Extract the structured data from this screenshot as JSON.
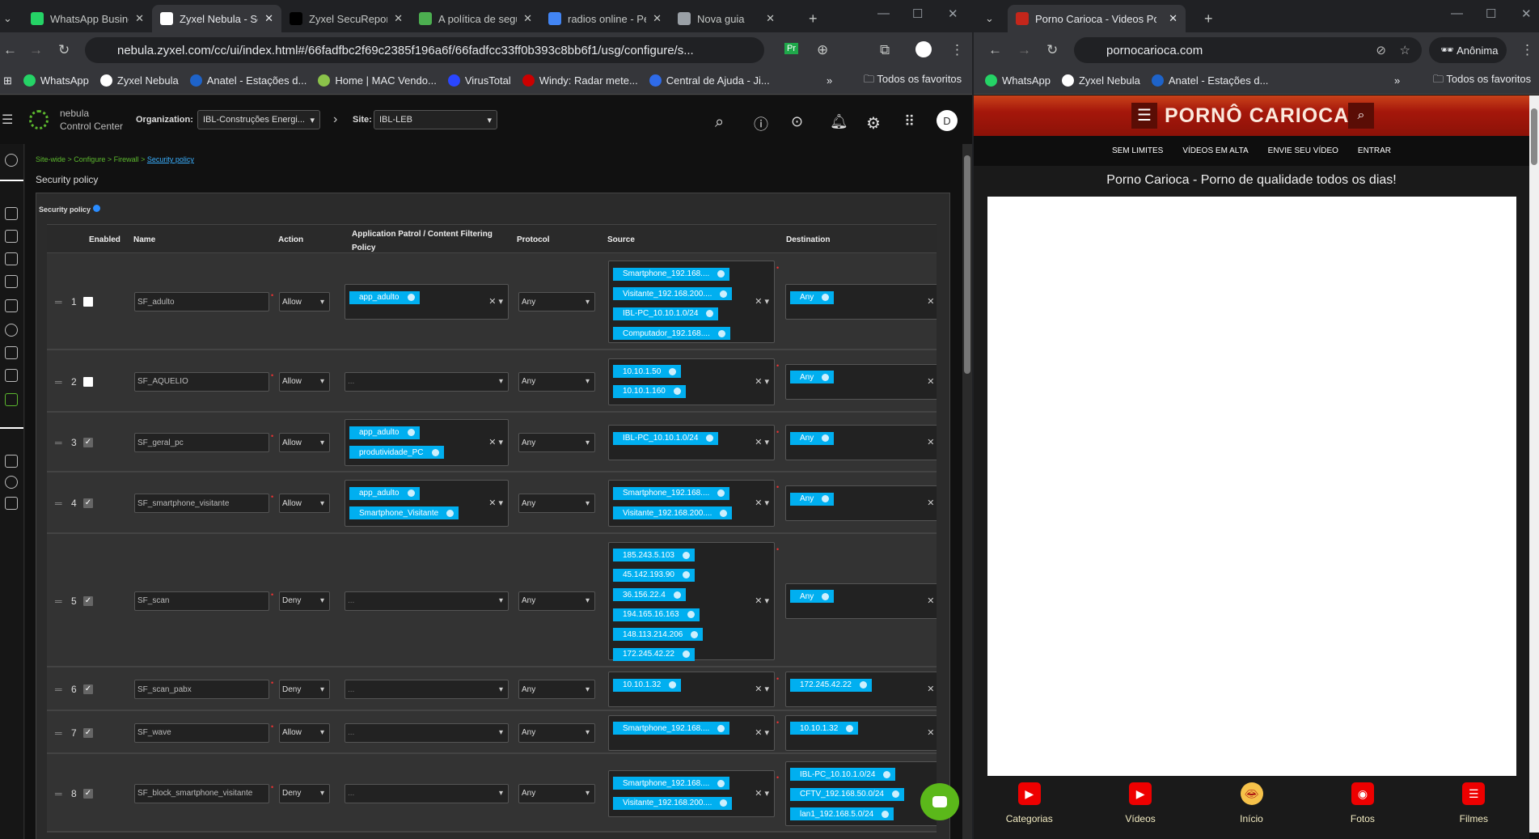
{
  "left_browser": {
    "tabs": [
      {
        "title": "WhatsApp Business",
        "icon": "whatsapp-icon",
        "color": "#25d366"
      },
      {
        "title": "Zyxel Nebula - Security",
        "icon": "zyxel-icon",
        "color": "#ffffff",
        "active": true
      },
      {
        "title": "Zyxel SecuReporter",
        "icon": "zyxel-icon",
        "color": "#000000"
      },
      {
        "title": "A política de segurança",
        "icon": "chat-icon",
        "color": "#4caf50"
      },
      {
        "title": "radios online - Pesquisa",
        "icon": "google-icon",
        "color": "#4285f4"
      },
      {
        "title": "Nova guia",
        "icon": "chrome-icon",
        "color": "#9aa0a6"
      }
    ],
    "url": "nebula.zyxel.com/cc/ui/index.html#/66fadfbc2f69c2385f196a6f/66fadfcc33ff0b393c8bb6f1/usg/configure/s...",
    "bookmarks": [
      "WhatsApp",
      "Zyxel Nebula",
      "Anatel - Estações d...",
      "Home | MAC Vendo...",
      "VirusTotal",
      "Windy: Radar mete...",
      "Central de Ajuda - Ji..."
    ],
    "all_bookmarks": "Todos os favoritos",
    "profile_initial": "D"
  },
  "nebula": {
    "logo_line1": "nebula",
    "logo_line2": "Control Center",
    "org_label": "Organization:",
    "org_value": "IBL-Construções Energi...",
    "site_label": "Site:",
    "site_value": "IBL-LEB",
    "breadcrumb": [
      "Site-wide >",
      "Configure >",
      "Firewall >",
      "Security policy"
    ],
    "page_title": "Security policy",
    "panel_title": "Security policy",
    "columns": {
      "enabled": "Enabled",
      "name": "Name",
      "action": "Action",
      "app": "Application Patrol / Content Filtering Policy",
      "protocol": "Protocol",
      "source": "Source",
      "destination": "Destination"
    },
    "rows": [
      {
        "num": "1",
        "enabled": false,
        "name": "SF_adulto",
        "action": "Allow",
        "app": [
          "app_adulto"
        ],
        "protocol": "Any",
        "source": [
          "Smartphone_192.168....",
          "Visitante_192.168.200....",
          "IBL-PC_10.10.1.0/24",
          "Computador_192.168...."
        ],
        "destination": [
          "Any"
        ]
      },
      {
        "num": "2",
        "enabled": false,
        "name": "SF_AQUELIO",
        "action": "Allow",
        "app": [],
        "protocol": "Any",
        "source": [
          "10.10.1.50",
          "10.10.1.160"
        ],
        "destination": [
          "Any"
        ]
      },
      {
        "num": "3",
        "enabled": true,
        "name": "SF_geral_pc",
        "action": "Allow",
        "app": [
          "app_adulto",
          "produtividade_PC"
        ],
        "protocol": "Any",
        "source": [
          "IBL-PC_10.10.1.0/24"
        ],
        "destination": [
          "Any"
        ]
      },
      {
        "num": "4",
        "enabled": true,
        "name": "SF_smartphone_visitante",
        "action": "Allow",
        "app": [
          "app_adulto",
          "Smartphone_Visitante"
        ],
        "protocol": "Any",
        "source": [
          "Smartphone_192.168....",
          "Visitante_192.168.200...."
        ],
        "destination": [
          "Any"
        ]
      },
      {
        "num": "5",
        "enabled": true,
        "name": "SF_scan",
        "action": "Deny",
        "app": [],
        "protocol": "Any",
        "source": [
          "185.243.5.103",
          "45.142.193.90",
          "36.156.22.4",
          "194.165.16.163",
          "148.113.214.206",
          "172.245.42.22"
        ],
        "destination": [
          "Any"
        ]
      },
      {
        "num": "6",
        "enabled": true,
        "name": "SF_scan_pabx",
        "action": "Deny",
        "app": [],
        "protocol": "Any",
        "source": [
          "10.10.1.32"
        ],
        "destination": [
          "172.245.42.22"
        ]
      },
      {
        "num": "7",
        "enabled": true,
        "name": "SF_wave",
        "action": "Allow",
        "app": [],
        "protocol": "Any",
        "source": [
          "Smartphone_192.168...."
        ],
        "destination": [
          "10.10.1.32"
        ]
      },
      {
        "num": "8",
        "enabled": true,
        "name": "SF_block_smartphone_visitante",
        "action": "Deny",
        "app": [],
        "protocol": "Any",
        "source": [
          "Smartphone_192.168....",
          "Visitante_192.168.200...."
        ],
        "destination": [
          "IBL-PC_10.10.1.0/24",
          "CFTV_192.168.50.0/24",
          "lan1_192.168.5.0/24"
        ]
      }
    ],
    "empty_placeholder": "...",
    "clear": "X",
    "accent": "#00aff0"
  },
  "right_browser": {
    "tab_title": "Porno Carioca - Videos Porno Amadores",
    "url": "pornocarioca.com",
    "incognito_label": "Anônima",
    "bookmarks": [
      "WhatsApp",
      "Zyxel Nebula",
      "Anatel - Estações d..."
    ],
    "all_bookmarks": "Todos os favoritos",
    "site": {
      "logo": "PORNÔ CARIOCA",
      "nav": [
        "SEM LIMITES",
        "VÍDEOS EM ALTA",
        "ENVIE SEU VÍDEO",
        "ENTRAR"
      ],
      "heading": "Porno Carioca - Porno de qualidade todos os dias!",
      "bottom_nav": [
        {
          "label": "Categorias",
          "icon": "categories-icon"
        },
        {
          "label": "Vídeos",
          "icon": "play-icon"
        },
        {
          "label": "Início",
          "icon": "home-lips-icon"
        },
        {
          "label": "Fotos",
          "icon": "camera-icon"
        },
        {
          "label": "Filmes",
          "icon": "clapperboard-icon"
        }
      ],
      "brand_color": "#b01a0a"
    }
  }
}
